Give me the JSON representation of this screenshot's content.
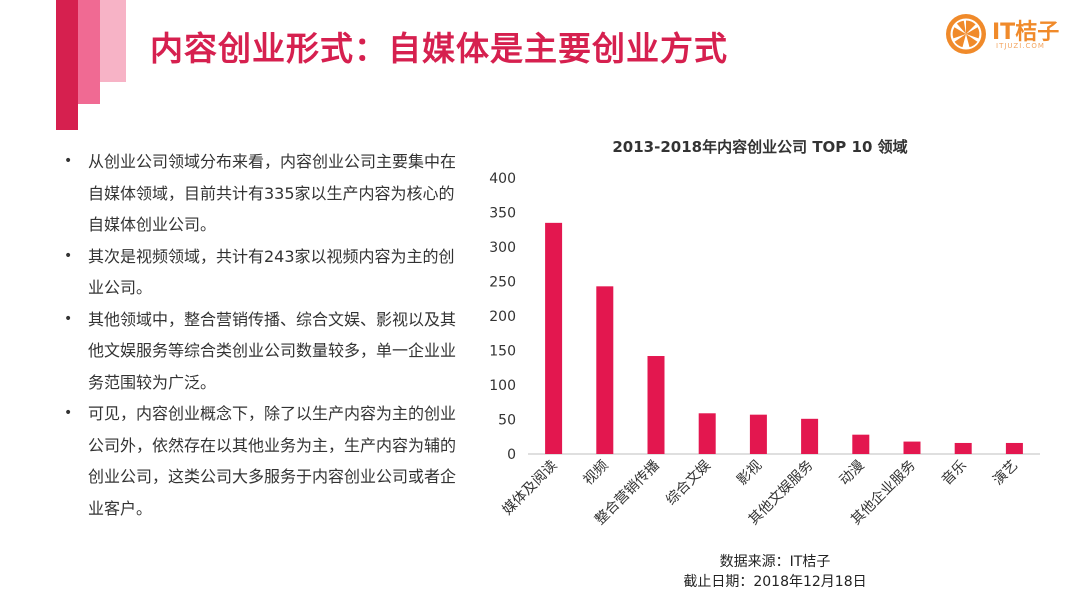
{
  "header": {
    "title": "内容创业形式：自媒体是主要创业方式"
  },
  "logo": {
    "text": "IT桔子",
    "sub": "ITJUZI.COM",
    "color": "#f08a2a"
  },
  "bullets": [
    "从创业公司领域分布来看，内容创业公司主要集中在自媒体领域，目前共计有335家以生产内容为核心的自媒体创业公司。",
    "其次是视频领域，共计有243家以视频内容为主的创业公司。",
    "其他领域中，整合营销传播、综合文娱、影视以及其他文娱服务等综合类创业公司数量较多，单一企业业务范围较为广泛。",
    "可见，内容创业概念下，除了以生产内容为主的创业公司外，依然存在以其他业务为主，生产内容为辅的创业公司，这类公司大多服务于内容创业公司或者企业客户。"
  ],
  "bullet_marker": "•",
  "colors": {
    "accent": "#d6204f",
    "bar": "#e3174f"
  },
  "chart_data": {
    "type": "bar",
    "title": "2013-2018年内容创业公司 TOP 10 领域",
    "categories": [
      "媒体及阅读",
      "视频",
      "整合营销传播",
      "综合文娱",
      "影视",
      "其他文娱服务",
      "动漫",
      "其他企业服务",
      "音乐",
      "演艺"
    ],
    "values": [
      335,
      243,
      142,
      59,
      57,
      51,
      28,
      18,
      16,
      16
    ],
    "ylim": [
      0,
      400
    ],
    "yticks": [
      0,
      50,
      100,
      150,
      200,
      250,
      300,
      350,
      400
    ],
    "grid": false,
    "xlabel": "",
    "ylabel": ""
  },
  "source": {
    "line1": "数据来源：IT桔子",
    "line2": "截止日期：2018年12月18日"
  }
}
